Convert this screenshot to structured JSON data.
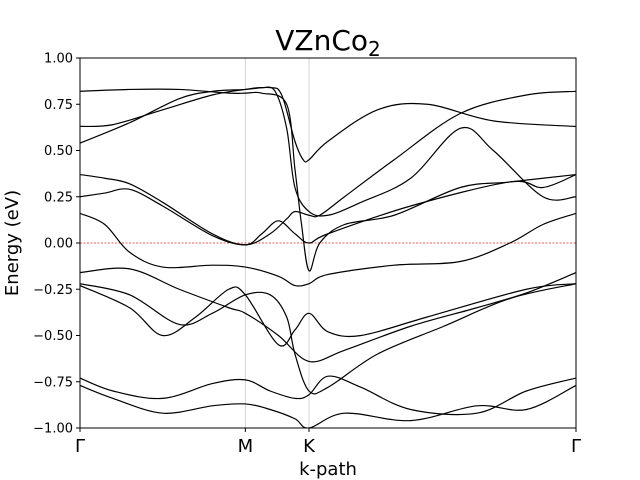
{
  "chart_data": {
    "type": "line",
    "title_base": "VZnCo",
    "title_sub": "2",
    "xlabel": "k-path",
    "ylabel": "Energy (eV)",
    "ylim": [
      -1.0,
      1.0
    ],
    "yticks": [
      "1.00",
      "0.75",
      "0.50",
      "0.25",
      "0.00",
      "−0.25",
      "−0.50",
      "−0.75",
      "−1.00"
    ],
    "ytick_values": [
      1.0,
      0.75,
      0.5,
      0.25,
      0.0,
      -0.25,
      -0.5,
      -0.75,
      -1.0
    ],
    "xlim": [
      0,
      3.0
    ],
    "kpoints": [
      {
        "label": "Γ",
        "x": 0.0
      },
      {
        "label": "M",
        "x": 1.0
      },
      {
        "label": "K",
        "x": 1.385
      },
      {
        "label": "Γ",
        "x": 3.0
      }
    ],
    "fermi_level": 0.0,
    "colors": {
      "bands": "#000000",
      "fermi": "#d62728",
      "kline": "#c8c8c8"
    },
    "series": [
      {
        "values": [
          [
            0,
            0.82
          ],
          [
            0.3,
            0.83
          ],
          [
            0.6,
            0.83
          ],
          [
            0.9,
            0.81
          ],
          [
            1.0,
            0.81
          ],
          [
            1.1,
            0.81
          ],
          [
            1.25,
            0.75
          ],
          [
            1.3,
            0.4
          ],
          [
            1.34,
            0.1
          ],
          [
            1.385,
            -0.15
          ],
          [
            1.45,
            0.0
          ],
          [
            1.6,
            0.1
          ],
          [
            1.9,
            0.15
          ],
          [
            2.3,
            0.3
          ],
          [
            2.6,
            0.33
          ],
          [
            3.0,
            0.37
          ]
        ]
      },
      {
        "values": [
          [
            0,
            0.63
          ],
          [
            0.2,
            0.64
          ],
          [
            0.5,
            0.72
          ],
          [
            0.8,
            0.8
          ],
          [
            1.0,
            0.83
          ],
          [
            1.1,
            0.84
          ],
          [
            1.18,
            0.82
          ],
          [
            1.25,
            0.62
          ],
          [
            1.3,
            0.3
          ],
          [
            1.385,
            0.17
          ],
          [
            1.5,
            0.15
          ],
          [
            1.7,
            0.22
          ],
          [
            2.0,
            0.35
          ],
          [
            2.3,
            0.62
          ],
          [
            2.5,
            0.5
          ],
          [
            2.8,
            0.25
          ],
          [
            3.0,
            0.25
          ]
        ]
      },
      {
        "values": [
          [
            0,
            0.54
          ],
          [
            0.3,
            0.65
          ],
          [
            0.6,
            0.78
          ],
          [
            0.8,
            0.82
          ],
          [
            1.0,
            0.83
          ],
          [
            1.15,
            0.84
          ],
          [
            1.22,
            0.8
          ],
          [
            1.3,
            0.55
          ],
          [
            1.35,
            0.45
          ],
          [
            1.385,
            0.45
          ],
          [
            1.5,
            0.55
          ],
          [
            1.8,
            0.72
          ],
          [
            2.1,
            0.75
          ],
          [
            2.5,
            0.66
          ],
          [
            3.0,
            0.63
          ]
        ]
      },
      {
        "values": [
          [
            0,
            0.37
          ],
          [
            0.15,
            0.35
          ],
          [
            0.3,
            0.32
          ],
          [
            0.5,
            0.22
          ],
          [
            0.8,
            0.05
          ],
          [
            1.0,
            -0.01
          ],
          [
            1.15,
            0.05
          ],
          [
            1.25,
            0.13
          ],
          [
            1.3,
            0.17
          ],
          [
            1.385,
            0.15
          ],
          [
            1.45,
            0.15
          ],
          [
            1.6,
            0.25
          ],
          [
            1.9,
            0.45
          ],
          [
            2.3,
            0.7
          ],
          [
            2.7,
            0.8
          ],
          [
            3.0,
            0.82
          ]
        ]
      },
      {
        "values": [
          [
            0,
            0.25
          ],
          [
            0.15,
            0.27
          ],
          [
            0.3,
            0.29
          ],
          [
            0.5,
            0.2
          ],
          [
            0.8,
            0.04
          ],
          [
            1.0,
            -0.01
          ],
          [
            1.1,
            0.05
          ],
          [
            1.2,
            0.12
          ],
          [
            1.3,
            0.05
          ],
          [
            1.385,
            0.0
          ],
          [
            1.5,
            0.05
          ],
          [
            2.0,
            0.2
          ],
          [
            2.6,
            0.33
          ],
          [
            2.8,
            0.3
          ],
          [
            3.0,
            0.37
          ]
        ]
      },
      {
        "values": [
          [
            0,
            0.16
          ],
          [
            0.15,
            0.1
          ],
          [
            0.3,
            -0.05
          ],
          [
            0.5,
            -0.13
          ],
          [
            0.8,
            -0.12
          ],
          [
            1.0,
            -0.13
          ],
          [
            1.2,
            -0.18
          ],
          [
            1.3,
            -0.23
          ],
          [
            1.385,
            -0.22
          ],
          [
            1.5,
            -0.17
          ],
          [
            1.9,
            -0.12
          ],
          [
            2.3,
            -0.1
          ],
          [
            2.6,
            0.0
          ],
          [
            2.8,
            0.1
          ],
          [
            3.0,
            0.16
          ]
        ]
      },
      {
        "values": [
          [
            0,
            -0.16
          ],
          [
            0.3,
            -0.14
          ],
          [
            0.6,
            -0.25
          ],
          [
            0.9,
            -0.35
          ],
          [
            1.0,
            -0.38
          ],
          [
            1.2,
            -0.5
          ],
          [
            1.385,
            -0.64
          ],
          [
            1.6,
            -0.58
          ],
          [
            2.0,
            -0.45
          ],
          [
            2.4,
            -0.35
          ],
          [
            2.7,
            -0.27
          ],
          [
            3.0,
            -0.16
          ]
        ]
      },
      {
        "values": [
          [
            0,
            -0.22
          ],
          [
            0.3,
            -0.28
          ],
          [
            0.6,
            -0.44
          ],
          [
            0.8,
            -0.38
          ],
          [
            1.0,
            -0.28
          ],
          [
            1.15,
            -0.28
          ],
          [
            1.25,
            -0.4
          ],
          [
            1.3,
            -0.6
          ],
          [
            1.385,
            -0.8
          ],
          [
            1.5,
            -0.78
          ],
          [
            1.8,
            -0.6
          ],
          [
            2.2,
            -0.45
          ],
          [
            2.6,
            -0.3
          ],
          [
            3.0,
            -0.22
          ]
        ]
      },
      {
        "values": [
          [
            0,
            -0.23
          ],
          [
            0.3,
            -0.35
          ],
          [
            0.5,
            -0.5
          ],
          [
            0.7,
            -0.4
          ],
          [
            0.9,
            -0.25
          ],
          [
            1.0,
            -0.28
          ],
          [
            1.2,
            -0.55
          ],
          [
            1.3,
            -0.47
          ],
          [
            1.385,
            -0.38
          ],
          [
            1.5,
            -0.48
          ],
          [
            1.7,
            -0.5
          ],
          [
            2.1,
            -0.4
          ],
          [
            2.7,
            -0.25
          ],
          [
            3.0,
            -0.22
          ]
        ]
      },
      {
        "values": [
          [
            0,
            -0.73
          ],
          [
            0.2,
            -0.8
          ],
          [
            0.5,
            -0.84
          ],
          [
            0.8,
            -0.76
          ],
          [
            1.0,
            -0.74
          ],
          [
            1.15,
            -0.8
          ],
          [
            1.3,
            -0.84
          ],
          [
            1.385,
            -0.82
          ],
          [
            1.5,
            -0.72
          ],
          [
            1.7,
            -0.78
          ],
          [
            2.0,
            -0.9
          ],
          [
            2.4,
            -0.92
          ],
          [
            2.7,
            -0.8
          ],
          [
            3.0,
            -0.73
          ]
        ]
      },
      {
        "values": [
          [
            0,
            -0.77
          ],
          [
            0.2,
            -0.84
          ],
          [
            0.5,
            -0.92
          ],
          [
            0.8,
            -0.88
          ],
          [
            1.0,
            -0.87
          ],
          [
            1.15,
            -0.9
          ],
          [
            1.3,
            -0.95
          ],
          [
            1.385,
            -1.0
          ],
          [
            1.6,
            -0.92
          ],
          [
            2.0,
            -0.96
          ],
          [
            2.4,
            -0.88
          ],
          [
            2.7,
            -0.9
          ],
          [
            3.0,
            -0.77
          ]
        ]
      }
    ]
  }
}
